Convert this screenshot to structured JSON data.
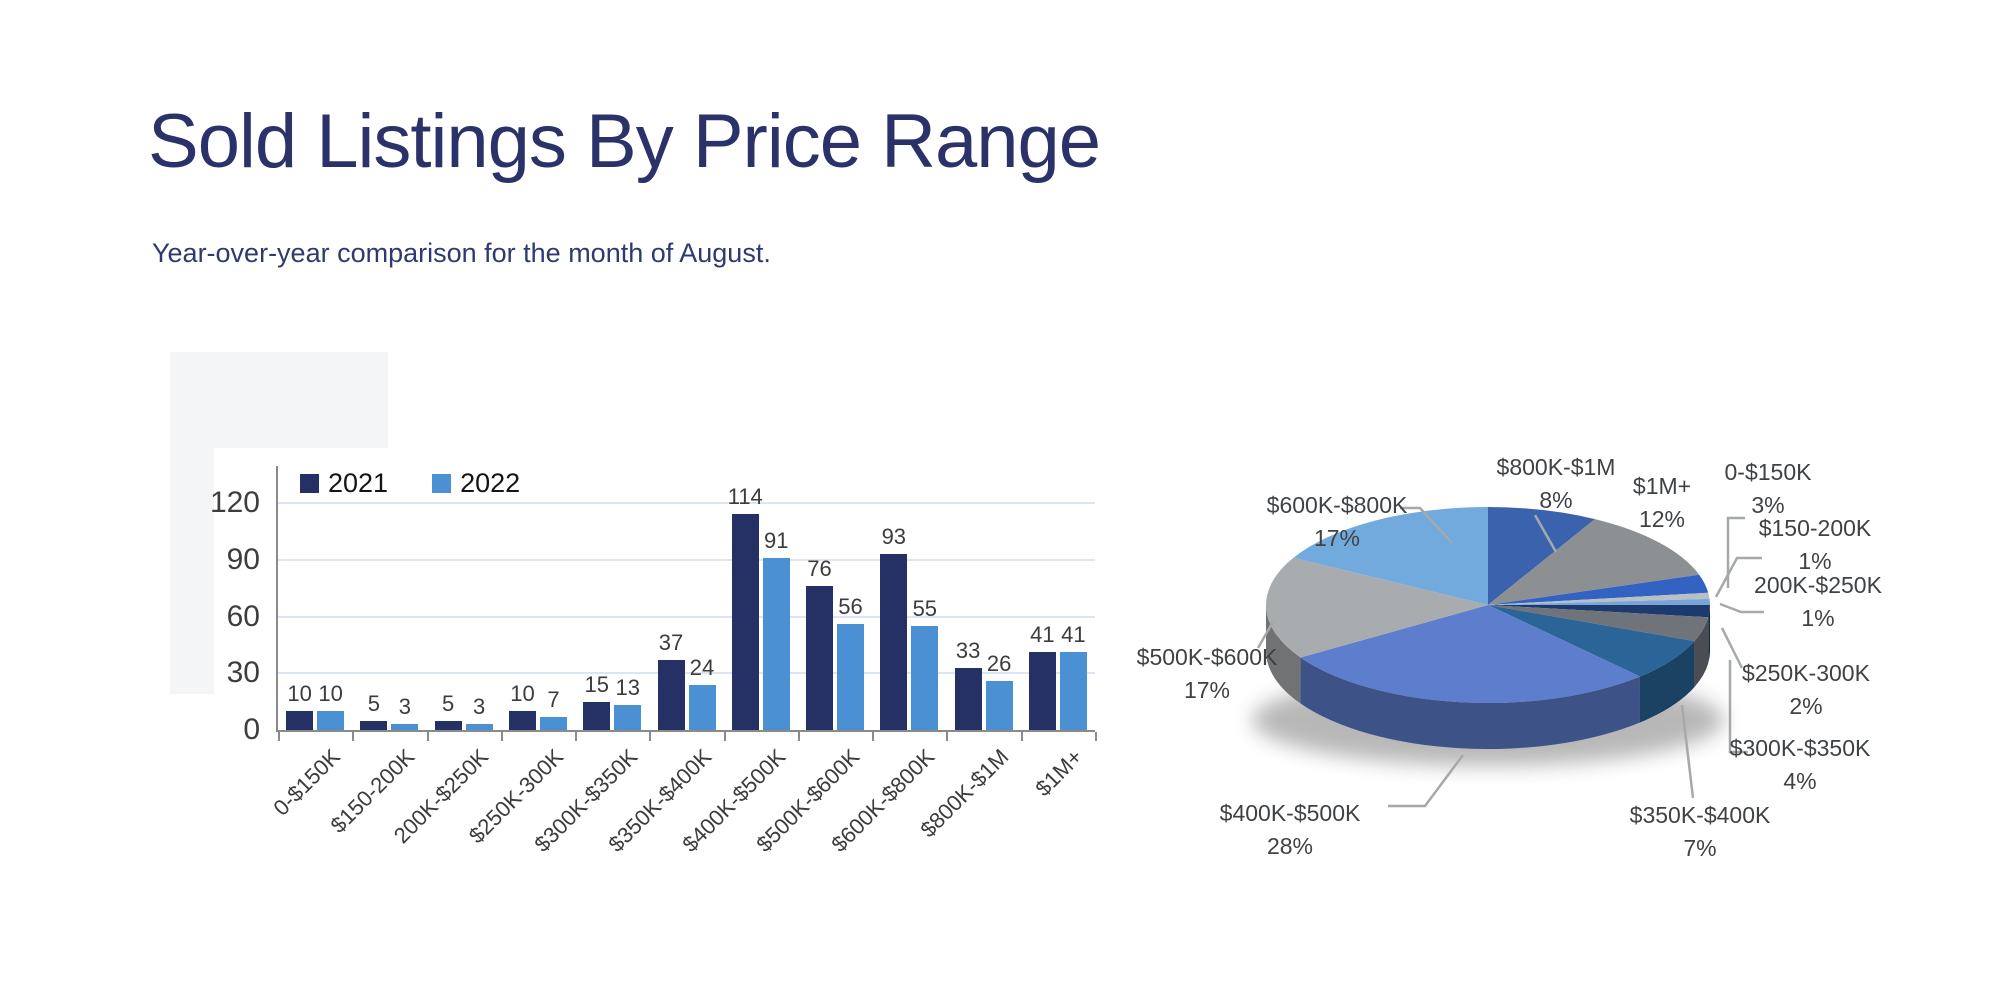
{
  "header": {
    "title": "Sold Listings By Price Range",
    "subtitle": "Year-over-year comparison for the month of August."
  },
  "colors": {
    "title_text": "#2b3269",
    "bar_2021": "#253165",
    "bar_2022": "#4b90d2",
    "gridline": "#dce6f2",
    "axis": "#8a8a8a",
    "leader_line": "#a6a9ab"
  },
  "chart_data": [
    {
      "type": "bar",
      "title": "",
      "categories": [
        "0-$150K",
        "$150-200K",
        "200K-$250K",
        "$250K-300K",
        "$300K-$350K",
        "$350K-$400K",
        "$400K-$500K",
        "$500K-$600K",
        "$600K-$800K",
        "$800K-$1M",
        "$1M+"
      ],
      "series": [
        {
          "name": "2021",
          "color": "#253165",
          "values": [
            10,
            5,
            5,
            10,
            15,
            37,
            114,
            76,
            93,
            33,
            41
          ]
        },
        {
          "name": "2022",
          "color": "#4b90d2",
          "values": [
            10,
            3,
            3,
            7,
            13,
            24,
            91,
            56,
            55,
            26,
            41
          ]
        }
      ],
      "yticks": [
        0,
        30,
        60,
        90,
        120
      ],
      "ylim": [
        0,
        130
      ],
      "grid": "horizontal",
      "legend_position": "top"
    },
    {
      "type": "pie",
      "style": "3d",
      "start_angle_deg": 0,
      "direction": "clockwise",
      "slices": [
        {
          "label": "$800K-$1M",
          "pct": 8,
          "color": "#3b63ad"
        },
        {
          "label": "$1M+",
          "pct": 12,
          "color": "#8d9093"
        },
        {
          "label": "0-$150K",
          "pct": 3,
          "color": "#3263c3"
        },
        {
          "label": "$150-200K",
          "pct": 1,
          "color": "#b8bfc5"
        },
        {
          "label": "200K-$250K",
          "pct": 1,
          "color": "#78a5d6"
        },
        {
          "label": "$250K-300K",
          "pct": 2,
          "color": "#1d3a6e"
        },
        {
          "label": "$300K-$350K",
          "pct": 4,
          "color": "#70747a"
        },
        {
          "label": "$350K-$400K",
          "pct": 7,
          "color": "#2b6496"
        },
        {
          "label": "$400K-$500K",
          "pct": 28,
          "color": "#5c7ecd"
        },
        {
          "label": "$500K-$600K",
          "pct": 17,
          "color": "#a9acae"
        },
        {
          "label": "$600K-$800K",
          "pct": 17,
          "color": "#73aadd"
        }
      ]
    }
  ]
}
